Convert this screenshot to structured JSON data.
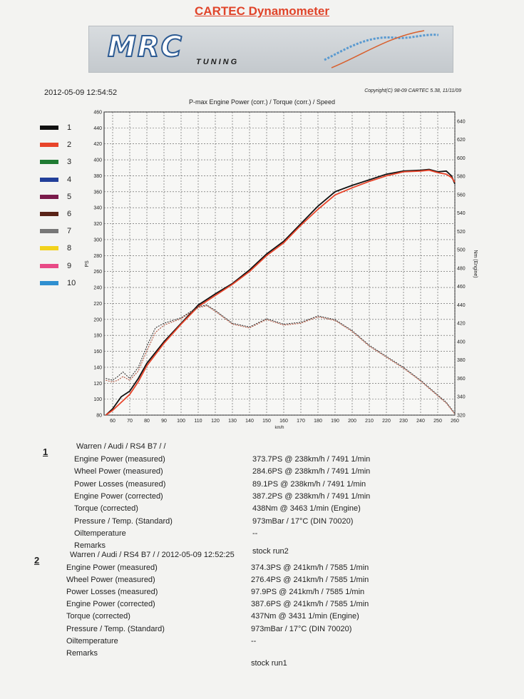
{
  "header": {
    "title": "CARTEC Dynamometer",
    "logo_text": "MRC",
    "logo_sub": "TUNING",
    "timestamp": "2012-05-09 12:54:52",
    "copyright": "Copyright(C) 98-09 CARTEC 5.38, 11/11/09",
    "plot_title": "P-max Engine Power (corr.) / Torque (corr.) / Speed"
  },
  "legend": [
    {
      "label": "1",
      "color": "#111111"
    },
    {
      "label": "2",
      "color": "#e8442a"
    },
    {
      "label": "3",
      "color": "#1f7a32"
    },
    {
      "label": "4",
      "color": "#223f99"
    },
    {
      "label": "5",
      "color": "#7a1a4a"
    },
    {
      "label": "6",
      "color": "#5a2418"
    },
    {
      "label": "7",
      "color": "#777777"
    },
    {
      "label": "8",
      "color": "#f2d21c"
    },
    {
      "label": "9",
      "color": "#e84a86"
    },
    {
      "label": "10",
      "color": "#2f8fd0"
    }
  ],
  "chart_data": {
    "type": "line",
    "xlabel": "km/h",
    "ylabel_left": "PS",
    "ylabel_right": "Nm (Engine)",
    "xlim": [
      55,
      260
    ],
    "ylim_left": [
      80,
      460
    ],
    "ylim_right": [
      320,
      650
    ],
    "grid": true,
    "x_ticks": [
      60,
      70,
      80,
      90,
      100,
      110,
      120,
      130,
      140,
      150,
      160,
      170,
      180,
      190,
      200,
      210,
      220,
      230,
      240,
      250,
      260
    ],
    "y_left_ticks": [
      80,
      100,
      120,
      140,
      160,
      180,
      200,
      220,
      240,
      260,
      280,
      300,
      320,
      340,
      360,
      380,
      400,
      420,
      440,
      460
    ],
    "y_right_ticks": [
      320,
      340,
      360,
      380,
      400,
      420,
      440,
      460,
      480,
      500,
      520,
      540,
      560,
      580,
      600,
      620,
      640
    ],
    "series": [
      {
        "name": "1",
        "axis": "left",
        "style": "solid",
        "color": "#111111",
        "x": [
          56,
          60,
          65,
          70,
          75,
          80,
          90,
          100,
          110,
          120,
          130,
          140,
          150,
          160,
          170,
          180,
          190,
          200,
          210,
          220,
          230,
          240,
          245,
          250,
          255,
          258,
          260
        ],
        "y": [
          80,
          88,
          103,
          110,
          126,
          145,
          172,
          195,
          218,
          232,
          245,
          262,
          282,
          298,
          320,
          342,
          360,
          368,
          375,
          382,
          386,
          387,
          388,
          385,
          386,
          380,
          370
        ]
      },
      {
        "name": "2",
        "axis": "left",
        "style": "solid",
        "color": "#e8442a",
        "x": [
          56,
          60,
          65,
          70,
          75,
          80,
          90,
          100,
          110,
          120,
          130,
          140,
          150,
          160,
          170,
          180,
          190,
          200,
          210,
          220,
          230,
          240,
          245,
          250,
          255,
          258,
          260
        ],
        "y": [
          80,
          86,
          96,
          106,
          122,
          142,
          170,
          194,
          216,
          230,
          244,
          260,
          280,
          296,
          318,
          338,
          356,
          365,
          373,
          380,
          385,
          386,
          387,
          384,
          382,
          378,
          372
        ]
      },
      {
        "name": "1",
        "axis": "right",
        "style": "dashed",
        "color": "#333333",
        "x": [
          56,
          60,
          63,
          66,
          70,
          75,
          80,
          85,
          90,
          100,
          110,
          115,
          120,
          130,
          140,
          150,
          160,
          170,
          180,
          190,
          200,
          210,
          220,
          230,
          240,
          250,
          255,
          260
        ],
        "y": [
          360,
          358,
          362,
          367,
          360,
          372,
          395,
          415,
          420,
          426,
          438,
          440,
          434,
          420,
          416,
          425,
          419,
          421,
          428,
          424,
          412,
          396,
          384,
          372,
          358,
          342,
          334,
          322
        ]
      },
      {
        "name": "2",
        "axis": "right",
        "style": "dashed",
        "color": "#b0503a",
        "x": [
          56,
          60,
          63,
          66,
          70,
          75,
          80,
          85,
          90,
          100,
          110,
          115,
          120,
          130,
          140,
          150,
          160,
          170,
          180,
          190,
          200,
          210,
          220,
          230,
          240,
          250,
          255,
          260
        ],
        "y": [
          358,
          356,
          358,
          362,
          358,
          368,
          390,
          410,
          418,
          425,
          437,
          439,
          433,
          419,
          415,
          424,
          418,
          420,
          427,
          423,
          411,
          395,
          383,
          371,
          357,
          341,
          333,
          321
        ]
      }
    ]
  },
  "runs": [
    {
      "num": "1",
      "header": "Warren / Audi / RS4 B7 /  /",
      "rows": [
        {
          "label": "Engine Power (measured)",
          "value": "373.7PS @ 238km/h / 7491 1/min"
        },
        {
          "label": "Wheel Power (measured)",
          "value": "284.6PS @ 238km/h / 7491 1/min"
        },
        {
          "label": "Power Losses (measured)",
          "value": "89.1PS @ 238km/h / 7491 1/min"
        },
        {
          "label": "Engine Power (corrected)",
          "value": "387.2PS @ 238km/h / 7491 1/min"
        },
        {
          "label": "Torque (corrected)",
          "value": "438Nm @ 3463 1/min (Engine)"
        },
        {
          "label": "Pressure / Temp. (Standard)",
          "value": "973mBar / 17°C    (DIN 70020)"
        },
        {
          "label": "Oiltemperature",
          "value": "--"
        },
        {
          "label": "Remarks",
          "value": "stock run2"
        }
      ]
    },
    {
      "num": "2",
      "header": "Warren / Audi / RS4 B7 /  / 2012-05-09 12:52:25",
      "rows": [
        {
          "label": "Engine Power (measured)",
          "value": "374.3PS @ 241km/h / 7585 1/min"
        },
        {
          "label": "Wheel Power (measured)",
          "value": "276.4PS @ 241km/h / 7585 1/min"
        },
        {
          "label": "Power Losses (measured)",
          "value": "97.9PS @ 241km/h / 7585 1/min"
        },
        {
          "label": "Engine Power (corrected)",
          "value": "387.6PS @ 241km/h / 7585 1/min"
        },
        {
          "label": "Torque (corrected)",
          "value": "437Nm @ 3431 1/min (Engine)"
        },
        {
          "label": "Pressure / Temp. (Standard)",
          "value": "973mBar / 17°C    (DIN 70020)"
        },
        {
          "label": "Oiltemperature",
          "value": "--"
        },
        {
          "label": "Remarks",
          "value": "stock run1"
        }
      ]
    }
  ]
}
